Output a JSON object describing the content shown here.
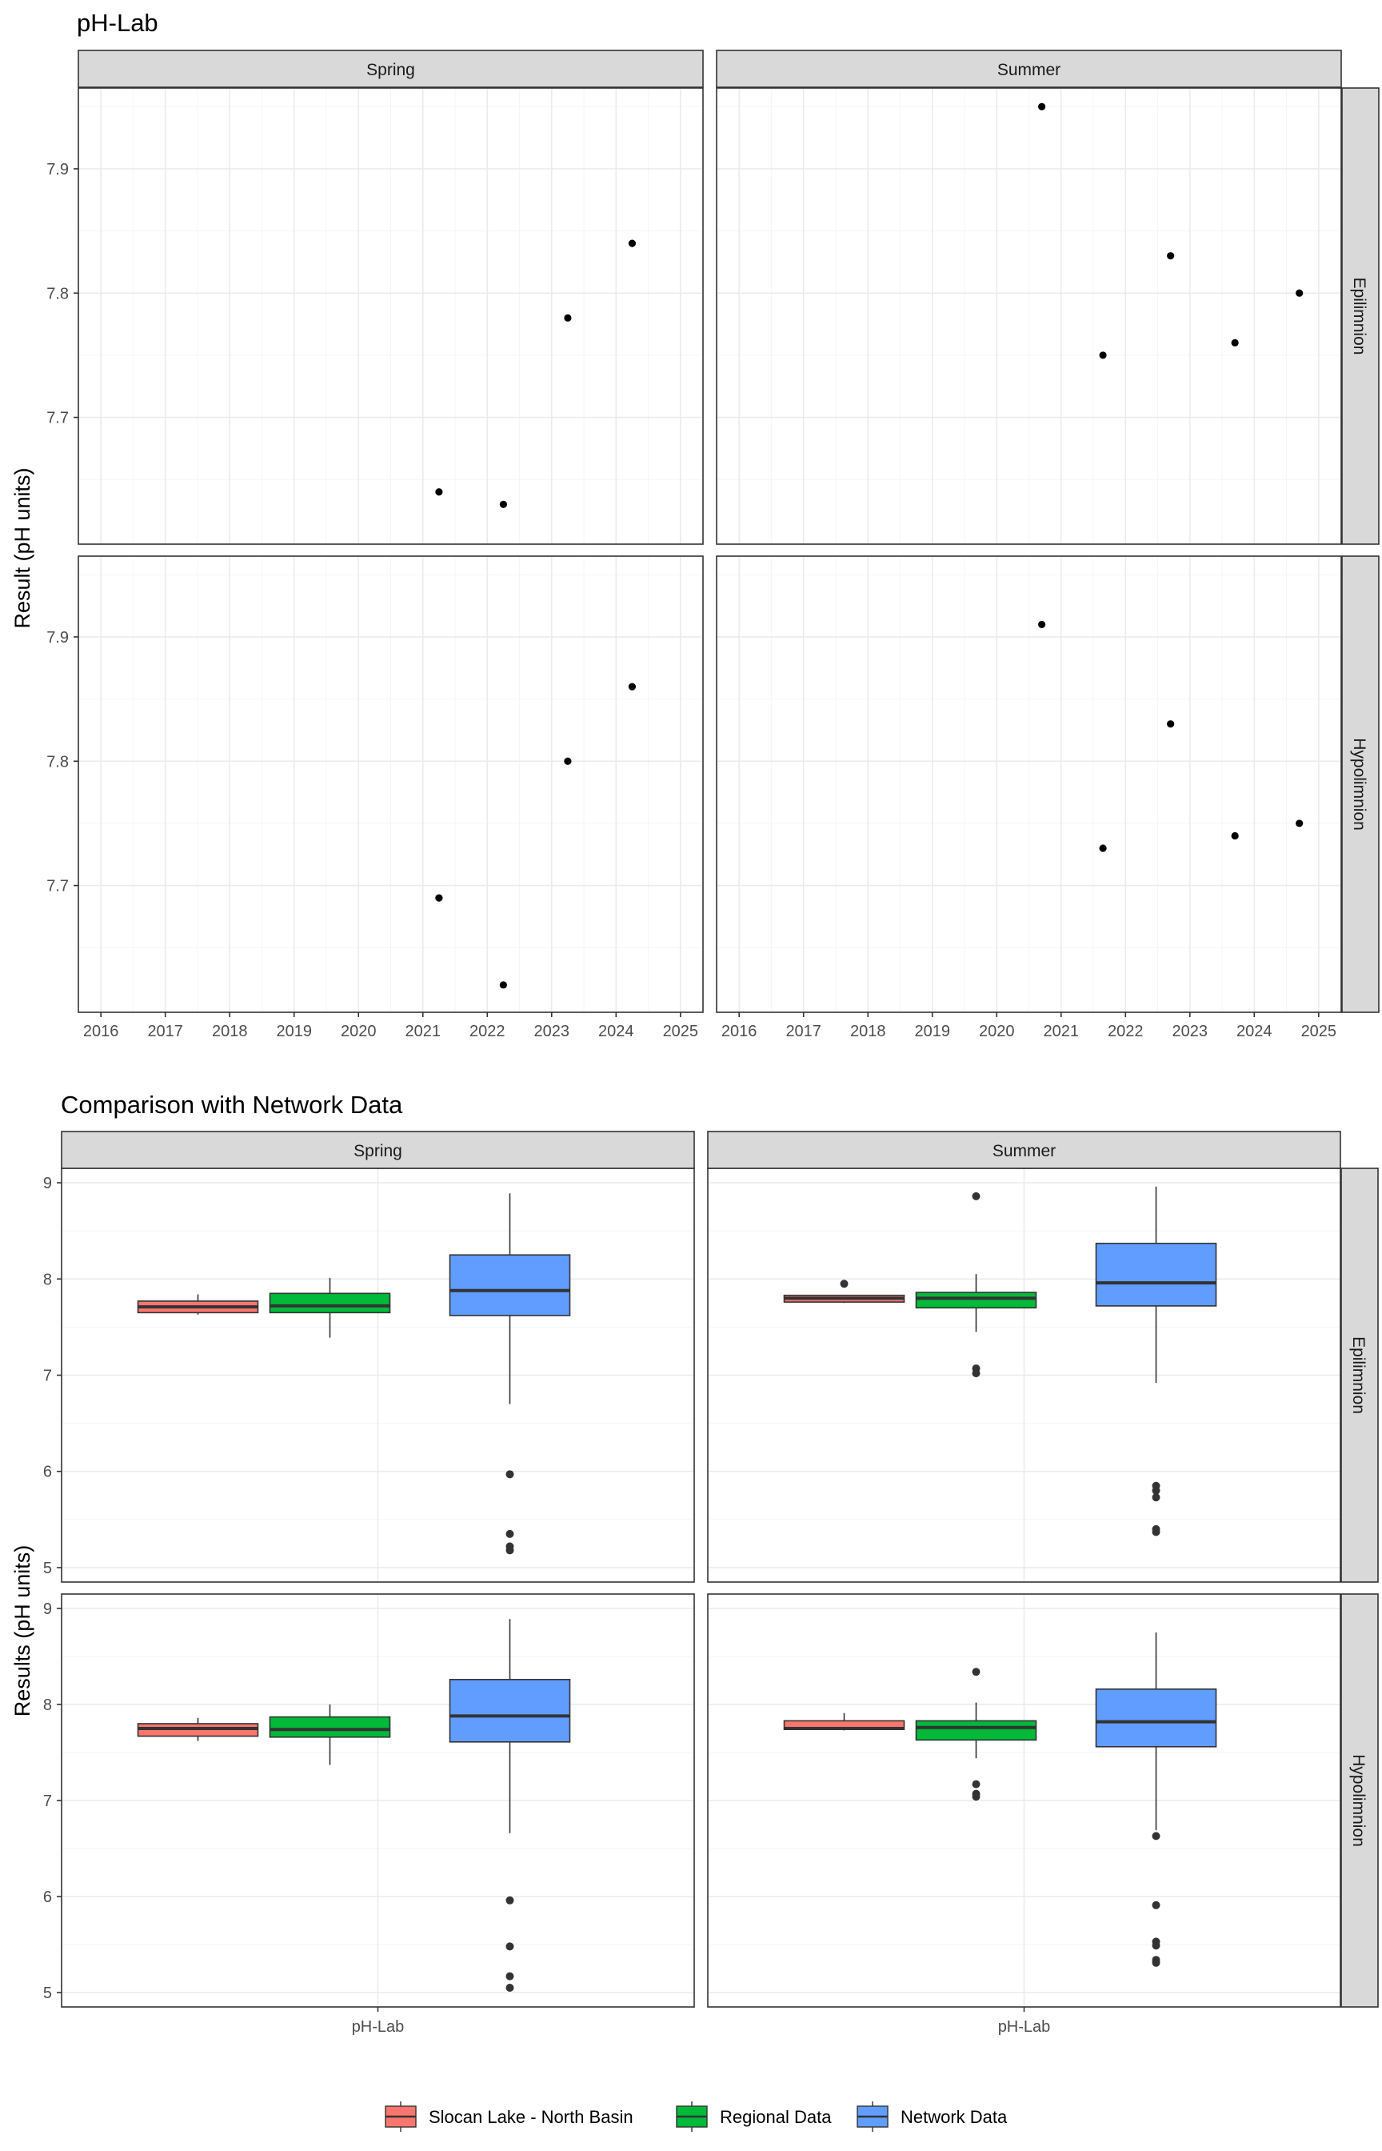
{
  "chart_data": [
    {
      "type": "scatter",
      "title": "pH-Lab",
      "ylabel": "Result (pH units)",
      "xlabel": "",
      "facet_columns": [
        "Spring",
        "Summer"
      ],
      "facet_rows": [
        "Epilimnion",
        "Hypolimnion"
      ],
      "x_ticks": [
        "2016",
        "2017",
        "2018",
        "2019",
        "2020",
        "2021",
        "2022",
        "2023",
        "2024",
        "2025"
      ],
      "y_ticks": [
        "7.7",
        "7.8",
        "7.9"
      ],
      "xlim": [
        2015.65,
        2025.35
      ],
      "ylim": [
        7.598,
        7.965
      ],
      "grid": true,
      "panels": [
        {
          "column": "Spring",
          "row": "Epilimnion",
          "points": [
            {
              "x": 2021.25,
              "y": 7.64
            },
            {
              "x": 2022.25,
              "y": 7.63
            },
            {
              "x": 2023.25,
              "y": 7.78
            },
            {
              "x": 2024.25,
              "y": 7.84
            }
          ]
        },
        {
          "column": "Summer",
          "row": "Epilimnion",
          "points": [
            {
              "x": 2020.7,
              "y": 7.95
            },
            {
              "x": 2021.65,
              "y": 7.75
            },
            {
              "x": 2022.7,
              "y": 7.83
            },
            {
              "x": 2023.7,
              "y": 7.76
            },
            {
              "x": 2024.7,
              "y": 7.8
            }
          ]
        },
        {
          "column": "Spring",
          "row": "Hypolimnion",
          "points": [
            {
              "x": 2021.25,
              "y": 7.69
            },
            {
              "x": 2022.25,
              "y": 7.62
            },
            {
              "x": 2023.25,
              "y": 7.8
            },
            {
              "x": 2024.25,
              "y": 7.86
            }
          ]
        },
        {
          "column": "Summer",
          "row": "Hypolimnion",
          "points": [
            {
              "x": 2020.7,
              "y": 7.91
            },
            {
              "x": 2021.65,
              "y": 7.73
            },
            {
              "x": 2022.7,
              "y": 7.83
            },
            {
              "x": 2023.7,
              "y": 7.74
            },
            {
              "x": 2024.7,
              "y": 7.75
            }
          ]
        }
      ]
    },
    {
      "type": "box",
      "title": "Comparison with Network Data",
      "ylabel": "Results (pH units)",
      "xlabel": "",
      "facet_columns": [
        "Spring",
        "Summer"
      ],
      "facet_rows": [
        "Epilimnion",
        "Hypolimnion"
      ],
      "categories": [
        "pH-Lab"
      ],
      "y_ticks": [
        "5",
        "6",
        "7",
        "8",
        "9"
      ],
      "ylim": [
        4.85,
        9.15
      ],
      "grid": true,
      "legend": {
        "position": "bottom",
        "entries": [
          {
            "name": "Slocan Lake - North Basin",
            "color": "#F8766D"
          },
          {
            "name": "Regional Data",
            "color": "#00BA38"
          },
          {
            "name": "Network Data",
            "color": "#619CFF"
          }
        ]
      },
      "panels": [
        {
          "column": "Spring",
          "row": "Epilimnion",
          "boxes": [
            {
              "group": "Slocan Lake - North Basin",
              "min": 7.63,
              "q1": 7.65,
              "median": 7.71,
              "q3": 7.77,
              "max": 7.84,
              "outliers": []
            },
            {
              "group": "Regional Data",
              "min": 7.39,
              "q1": 7.65,
              "median": 7.72,
              "q3": 7.85,
              "max": 8.01,
              "outliers": []
            },
            {
              "group": "Network Data",
              "min": 6.7,
              "q1": 7.62,
              "median": 7.88,
              "q3": 8.25,
              "max": 8.89,
              "outliers": [
                5.97,
                5.35,
                5.22,
                5.18
              ]
            }
          ]
        },
        {
          "column": "Summer",
          "row": "Epilimnion",
          "boxes": [
            {
              "group": "Slocan Lake - North Basin",
              "min": 7.75,
              "q1": 7.76,
              "median": 7.8,
              "q3": 7.83,
              "max": 7.83,
              "outliers": [
                7.95
              ]
            },
            {
              "group": "Regional Data",
              "min": 7.45,
              "q1": 7.7,
              "median": 7.8,
              "q3": 7.86,
              "max": 8.05,
              "outliers": [
                8.86,
                7.07,
                7.02
              ]
            },
            {
              "group": "Network Data",
              "min": 6.92,
              "q1": 7.72,
              "median": 7.96,
              "q3": 8.37,
              "max": 8.96,
              "outliers": [
                5.85,
                5.8,
                5.73,
                5.4,
                5.37
              ]
            }
          ]
        },
        {
          "column": "Spring",
          "row": "Hypolimnion",
          "boxes": [
            {
              "group": "Slocan Lake - North Basin",
              "min": 7.62,
              "q1": 7.67,
              "median": 7.75,
              "q3": 7.8,
              "max": 7.86,
              "outliers": []
            },
            {
              "group": "Regional Data",
              "min": 7.37,
              "q1": 7.66,
              "median": 7.74,
              "q3": 7.87,
              "max": 8.0,
              "outliers": []
            },
            {
              "group": "Network Data",
              "min": 6.66,
              "q1": 7.61,
              "median": 7.88,
              "q3": 8.26,
              "max": 8.89,
              "outliers": [
                5.96,
                5.48,
                5.17,
                5.05
              ]
            }
          ]
        },
        {
          "column": "Summer",
          "row": "Hypolimnion",
          "boxes": [
            {
              "group": "Slocan Lake - North Basin",
              "min": 7.73,
              "q1": 7.74,
              "median": 7.75,
              "q3": 7.83,
              "max": 7.91,
              "outliers": []
            },
            {
              "group": "Regional Data",
              "min": 7.44,
              "q1": 7.63,
              "median": 7.76,
              "q3": 7.83,
              "max": 8.02,
              "outliers": [
                8.34,
                7.17,
                7.07,
                7.04
              ]
            },
            {
              "group": "Network Data",
              "min": 6.69,
              "q1": 7.56,
              "median": 7.82,
              "q3": 8.16,
              "max": 8.75,
              "outliers": [
                6.63,
                5.91,
                5.53,
                5.49,
                5.34,
                5.31
              ]
            }
          ]
        }
      ]
    }
  ]
}
